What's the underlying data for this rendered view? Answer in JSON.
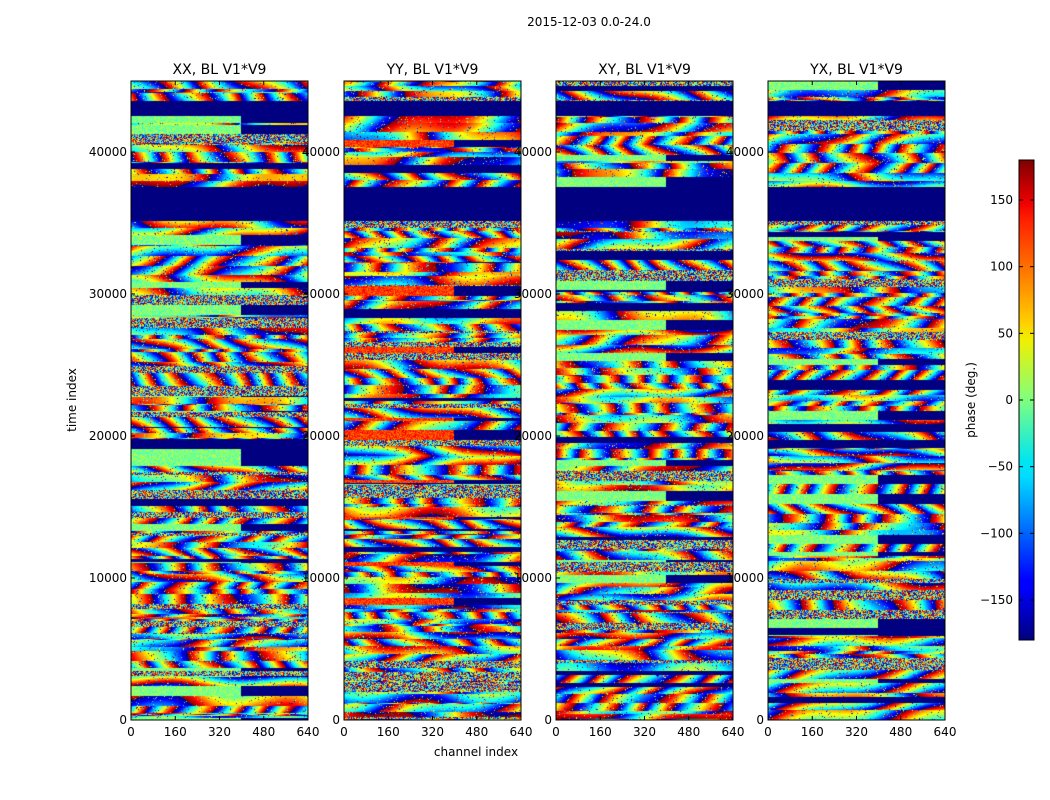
{
  "chart_data": {
    "type": "heatmap",
    "suptitle": "2015-12-03 0.0-24.0",
    "xlabel": "channel index",
    "ylabel": "time index",
    "xlim": [
      0,
      640
    ],
    "ylim": [
      0,
      45000
    ],
    "x_ticks": [
      0,
      160,
      320,
      480,
      640
    ],
    "x_tick_labels": [
      "0",
      "160",
      "320",
      "480",
      "640"
    ],
    "y_ticks": [
      0,
      10000,
      20000,
      30000,
      40000
    ],
    "y_tick_labels": [
      "0",
      "10000",
      "20000",
      "30000",
      "40000"
    ],
    "colormap": "jet",
    "colorbar": {
      "label": "phase (deg.)",
      "range": [
        -180,
        180
      ],
      "ticks": [
        -150,
        -100,
        -50,
        0,
        50,
        100,
        150
      ],
      "tick_labels": [
        "−150",
        "−100",
        "−50",
        "0",
        "50",
        "100",
        "150"
      ]
    },
    "panels": [
      {
        "title": "XX, BL V1*V9"
      },
      {
        "title": "YY, BL V1*V9"
      },
      {
        "title": "XY, BL V1*V9"
      },
      {
        "title": "YX, BL V1*V9"
      }
    ],
    "masked_bands": [
      {
        "t0": 35200,
        "t1": 37600
      },
      {
        "t0": 42600,
        "t1": 43600
      }
    ]
  }
}
